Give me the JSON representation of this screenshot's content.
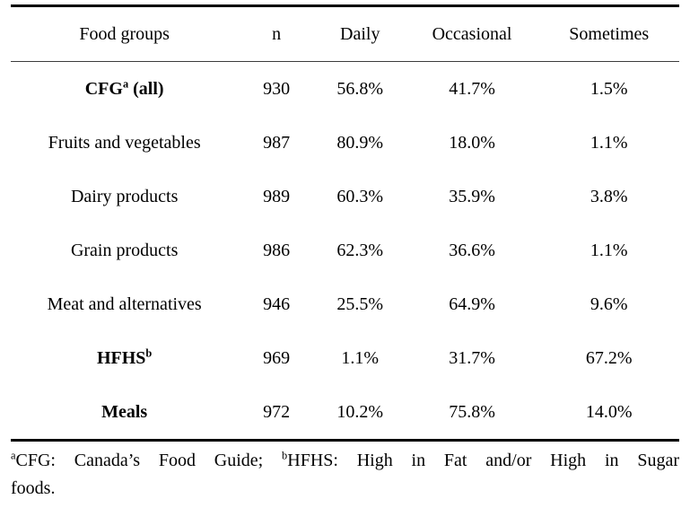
{
  "table": {
    "columns": [
      "Food groups",
      "n",
      "Daily",
      "Occasional",
      "Sometimes"
    ],
    "rows": [
      {
        "label": "CFG",
        "label_sup": "a",
        "label_post": " (all)",
        "n": "930",
        "daily": "56.8%",
        "occasional": "41.7%",
        "sometimes": "1.5%"
      },
      {
        "label": "Fruits and vegetables",
        "label_sup": "",
        "label_post": "",
        "n": "987",
        "daily": "80.9%",
        "occasional": "18.0%",
        "sometimes": "1.1%"
      },
      {
        "label": "Dairy products",
        "label_sup": "",
        "label_post": "",
        "n": "989",
        "daily": "60.3%",
        "occasional": "35.9%",
        "sometimes": "3.8%"
      },
      {
        "label": "Grain products",
        "label_sup": "",
        "label_post": "",
        "n": "986",
        "daily": "62.3%",
        "occasional": "36.6%",
        "sometimes": "1.1%"
      },
      {
        "label": "Meat and alternatives",
        "label_sup": "",
        "label_post": "",
        "n": "946",
        "daily": "25.5%",
        "occasional": "64.9%",
        "sometimes": "9.6%"
      },
      {
        "label": "HFHS",
        "label_sup": "b",
        "label_post": "",
        "n": "969",
        "daily": "1.1%",
        "occasional": "31.7%",
        "sometimes": "67.2%"
      },
      {
        "label": "Meals",
        "label_sup": "",
        "label_post": "",
        "n": "972",
        "daily": "10.2%",
        "occasional": "75.8%",
        "sometimes": "14.0%"
      }
    ]
  },
  "footnote": {
    "sup_a": "a",
    "part1": "CFG: Canada’s Food Guide; ",
    "sup_b": "b",
    "part2": "HFHS: High in Fat and/or High in Sugar",
    "line2": "foods."
  },
  "colors": {
    "text": "#000000",
    "background": "#ffffff",
    "rule": "#000000"
  }
}
